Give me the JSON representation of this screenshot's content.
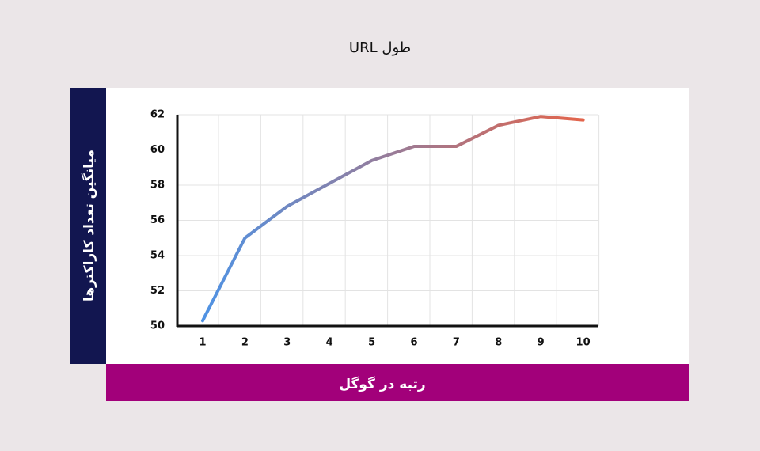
{
  "chart_data": {
    "type": "line",
    "title": "طول URL",
    "xlabel": "رتبه در گوگل",
    "ylabel": "میانگین تعداد کاراکترها",
    "categories": [
      "1",
      "2",
      "3",
      "4",
      "5",
      "6",
      "7",
      "8",
      "9",
      "10"
    ],
    "values": [
      50.3,
      55.0,
      56.8,
      58.1,
      59.4,
      60.2,
      60.2,
      61.4,
      61.9,
      61.7
    ],
    "colors": [
      "#4d93e6",
      "#e4644a"
    ],
    "ylim": [
      50,
      62
    ],
    "yticks": [
      50,
      52,
      54,
      56,
      58,
      60,
      62
    ],
    "grid": true
  }
}
